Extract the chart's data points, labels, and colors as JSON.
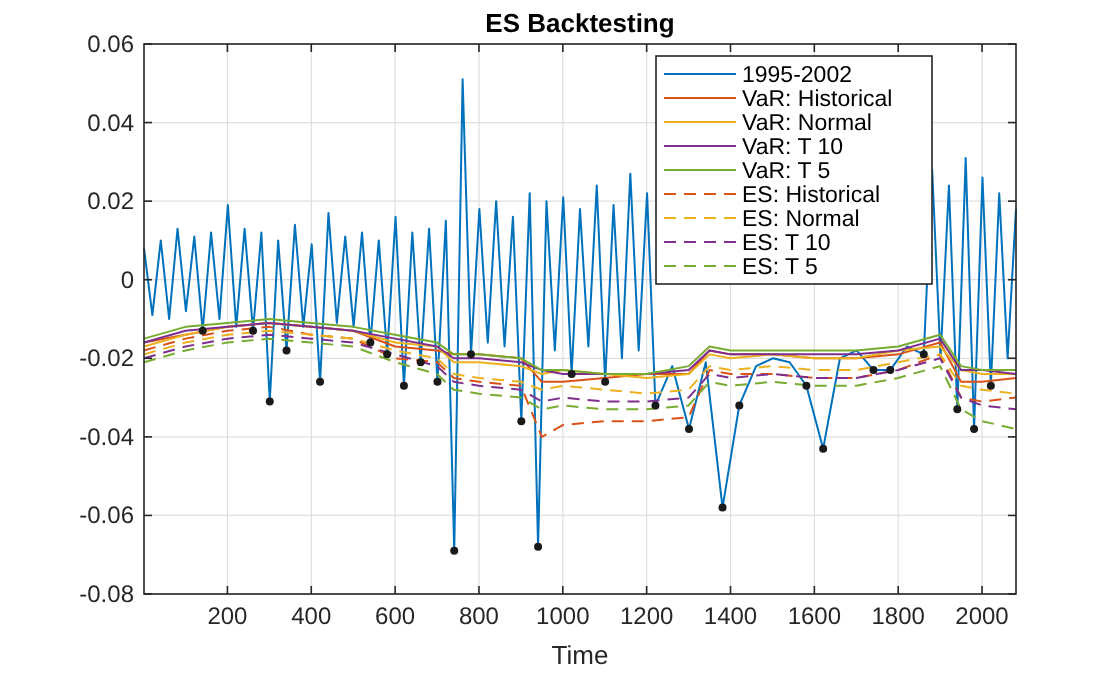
{
  "chart_data": {
    "type": "line",
    "title": "ES Backtesting",
    "xlabel": "Time",
    "xlim": [
      1,
      2081
    ],
    "ylim": [
      -0.08,
      0.06
    ],
    "xticks": [
      200,
      400,
      600,
      800,
      1000,
      1200,
      1400,
      1600,
      1800,
      2000
    ],
    "yticks": [
      -0.08,
      -0.06,
      -0.04,
      -0.02,
      0,
      0.02,
      0.04,
      0.06
    ],
    "grid": true,
    "legend": "top right",
    "marker": "none",
    "series": [
      {
        "name": "1995-2002",
        "color": "#0072bd",
        "x": [
          1,
          21,
          41,
          61,
          81,
          101,
          121,
          141,
          161,
          181,
          201,
          221,
          241,
          261,
          281,
          301,
          321,
          341,
          361,
          381,
          401,
          421,
          441,
          461,
          481,
          501,
          521,
          541,
          561,
          581,
          601,
          621,
          641,
          661,
          681,
          701,
          721,
          741,
          761,
          781,
          801,
          821,
          841,
          861,
          881,
          901,
          921,
          941,
          961,
          981,
          1001,
          1021,
          1041,
          1061,
          1081,
          1101,
          1121,
          1141,
          1161,
          1181,
          1201,
          1221,
          1261,
          1301,
          1341,
          1381,
          1421,
          1461,
          1501,
          1541,
          1581,
          1621,
          1661,
          1701,
          1741,
          1781,
          1821,
          1861,
          1881,
          1901,
          1921,
          1941,
          1961,
          1981,
          2001,
          2021,
          2041,
          2061,
          2081
        ],
        "values": [
          0.008,
          -0.009,
          0.01,
          -0.01,
          0.013,
          -0.008,
          0.011,
          -0.013,
          0.012,
          -0.01,
          0.019,
          -0.012,
          0.013,
          -0.013,
          0.012,
          -0.031,
          0.01,
          -0.018,
          0.014,
          -0.012,
          0.009,
          -0.026,
          0.017,
          -0.011,
          0.011,
          -0.012,
          0.012,
          -0.016,
          0.01,
          -0.019,
          0.016,
          -0.027,
          0.012,
          -0.021,
          0.013,
          -0.026,
          0.015,
          -0.069,
          0.051,
          -0.019,
          0.018,
          -0.016,
          0.02,
          -0.017,
          0.016,
          -0.036,
          0.022,
          -0.068,
          0.02,
          -0.018,
          0.021,
          -0.024,
          0.018,
          -0.017,
          0.024,
          -0.026,
          0.019,
          -0.02,
          0.027,
          -0.018,
          0.022,
          -0.032,
          -0.022,
          -0.038,
          -0.021,
          -0.058,
          -0.032,
          -0.022,
          -0.02,
          -0.021,
          -0.027,
          -0.043,
          -0.02,
          -0.018,
          -0.023,
          -0.023,
          -0.017,
          -0.019,
          0.028,
          -0.02,
          0.024,
          -0.033,
          0.031,
          -0.038,
          0.026,
          -0.027,
          0.022,
          -0.02,
          0.018
        ]
      },
      {
        "name": "VaR: Historical",
        "color": "#d95319",
        "x": [
          1,
          100,
          200,
          300,
          400,
          500,
          600,
          700,
          740,
          800,
          900,
          950,
          1000,
          1100,
          1200,
          1300,
          1350,
          1400,
          1500,
          1600,
          1700,
          1800,
          1900,
          1950,
          2000,
          2081
        ],
        "values": [
          -0.016,
          -0.014,
          -0.012,
          -0.011,
          -0.012,
          -0.013,
          -0.017,
          -0.018,
          -0.019,
          -0.019,
          -0.02,
          -0.026,
          -0.026,
          -0.025,
          -0.024,
          -0.024,
          -0.018,
          -0.019,
          -0.019,
          -0.02,
          -0.02,
          -0.019,
          -0.016,
          -0.026,
          -0.026,
          -0.025
        ]
      },
      {
        "name": "VaR: Normal",
        "color": "#edb120",
        "x": [
          1,
          100,
          200,
          300,
          400,
          500,
          600,
          700,
          740,
          800,
          900,
          950,
          1000,
          1100,
          1200,
          1300,
          1350,
          1400,
          1500,
          1600,
          1700,
          1800,
          1900,
          1950,
          2000,
          2081
        ],
        "values": [
          -0.017,
          -0.014,
          -0.012,
          -0.011,
          -0.012,
          -0.013,
          -0.016,
          -0.017,
          -0.021,
          -0.021,
          -0.022,
          -0.024,
          -0.023,
          -0.024,
          -0.025,
          -0.024,
          -0.019,
          -0.02,
          -0.019,
          -0.02,
          -0.02,
          -0.018,
          -0.017,
          -0.023,
          -0.024,
          -0.024
        ]
      },
      {
        "name": "VaR: T 10",
        "color": "#7e2f8e",
        "x": [
          1,
          100,
          200,
          300,
          400,
          500,
          600,
          700,
          740,
          800,
          900,
          950,
          1000,
          1100,
          1200,
          1300,
          1350,
          1400,
          1500,
          1600,
          1700,
          1800,
          1900,
          1950,
          2000,
          2081
        ],
        "values": [
          -0.016,
          -0.013,
          -0.012,
          -0.011,
          -0.012,
          -0.013,
          -0.015,
          -0.017,
          -0.02,
          -0.02,
          -0.021,
          -0.023,
          -0.024,
          -0.024,
          -0.024,
          -0.023,
          -0.018,
          -0.019,
          -0.019,
          -0.019,
          -0.019,
          -0.018,
          -0.015,
          -0.023,
          -0.023,
          -0.024
        ]
      },
      {
        "name": "VaR: T 5",
        "color": "#77ac30",
        "x": [
          1,
          100,
          200,
          300,
          400,
          500,
          600,
          700,
          740,
          800,
          900,
          950,
          1000,
          1100,
          1200,
          1300,
          1350,
          1400,
          1500,
          1600,
          1700,
          1800,
          1900,
          1950,
          2000,
          2081
        ],
        "values": [
          -0.015,
          -0.012,
          -0.011,
          -0.01,
          -0.011,
          -0.012,
          -0.014,
          -0.016,
          -0.019,
          -0.019,
          -0.02,
          -0.023,
          -0.023,
          -0.024,
          -0.024,
          -0.022,
          -0.017,
          -0.018,
          -0.018,
          -0.018,
          -0.018,
          -0.017,
          -0.014,
          -0.022,
          -0.023,
          -0.023
        ]
      },
      {
        "name": "ES: Historical",
        "color": "#d95319",
        "line_style": "dashed",
        "x": [
          1,
          100,
          200,
          300,
          400,
          500,
          600,
          700,
          740,
          800,
          900,
          950,
          1000,
          1100,
          1200,
          1300,
          1350,
          1400,
          1500,
          1600,
          1700,
          1800,
          1900,
          1950,
          2000,
          2081
        ],
        "values": [
          -0.018,
          -0.015,
          -0.013,
          -0.012,
          -0.014,
          -0.015,
          -0.02,
          -0.021,
          -0.025,
          -0.026,
          -0.027,
          -0.04,
          -0.037,
          -0.036,
          -0.036,
          -0.035,
          -0.023,
          -0.024,
          -0.024,
          -0.025,
          -0.025,
          -0.023,
          -0.019,
          -0.03,
          -0.031,
          -0.03
        ]
      },
      {
        "name": "ES: Normal",
        "color": "#edb120",
        "line_style": "dashed",
        "x": [
          1,
          100,
          200,
          300,
          400,
          500,
          600,
          700,
          740,
          800,
          900,
          950,
          1000,
          1100,
          1200,
          1300,
          1350,
          1400,
          1500,
          1600,
          1700,
          1800,
          1900,
          1950,
          2000,
          2081
        ],
        "values": [
          -0.019,
          -0.016,
          -0.014,
          -0.013,
          -0.014,
          -0.015,
          -0.018,
          -0.02,
          -0.024,
          -0.025,
          -0.026,
          -0.028,
          -0.027,
          -0.028,
          -0.029,
          -0.028,
          -0.022,
          -0.023,
          -0.022,
          -0.023,
          -0.023,
          -0.021,
          -0.019,
          -0.027,
          -0.028,
          -0.029
        ]
      },
      {
        "name": "ES: T 10",
        "color": "#7e2f8e",
        "line_style": "dashed",
        "x": [
          1,
          100,
          200,
          300,
          400,
          500,
          600,
          700,
          740,
          800,
          900,
          950,
          1000,
          1100,
          1200,
          1300,
          1350,
          1400,
          1500,
          1600,
          1700,
          1800,
          1900,
          1950,
          2000,
          2081
        ],
        "values": [
          -0.02,
          -0.017,
          -0.015,
          -0.014,
          -0.015,
          -0.016,
          -0.019,
          -0.022,
          -0.026,
          -0.027,
          -0.028,
          -0.031,
          -0.03,
          -0.031,
          -0.031,
          -0.03,
          -0.024,
          -0.025,
          -0.024,
          -0.025,
          -0.025,
          -0.023,
          -0.02,
          -0.03,
          -0.032,
          -0.033
        ]
      },
      {
        "name": "ES: T 5",
        "color": "#77ac30",
        "line_style": "dashed",
        "x": [
          1,
          100,
          200,
          300,
          400,
          500,
          600,
          700,
          740,
          800,
          900,
          950,
          1000,
          1100,
          1200,
          1300,
          1350,
          1400,
          1500,
          1600,
          1700,
          1800,
          1900,
          1950,
          2000,
          2081
        ],
        "values": [
          -0.021,
          -0.018,
          -0.016,
          -0.015,
          -0.016,
          -0.017,
          -0.021,
          -0.024,
          -0.028,
          -0.029,
          -0.03,
          -0.033,
          -0.032,
          -0.033,
          -0.033,
          -0.032,
          -0.026,
          -0.027,
          -0.026,
          -0.027,
          -0.027,
          -0.025,
          -0.022,
          -0.033,
          -0.036,
          -0.038
        ]
      },
      {
        "type": "scatter",
        "marker": "circle",
        "color": "#1a1a1a",
        "x": [
          141,
          261,
          301,
          341,
          421,
          541,
          581,
          621,
          661,
          701,
          741,
          781,
          901,
          941,
          1021,
          1101,
          1221,
          1301,
          1381,
          1421,
          1581,
          1621,
          1741,
          1781,
          1861,
          1941,
          1981,
          2021
        ],
        "values": [
          -0.013,
          -0.013,
          -0.031,
          -0.018,
          -0.026,
          -0.016,
          -0.019,
          -0.027,
          -0.021,
          -0.026,
          -0.069,
          -0.019,
          -0.036,
          -0.068,
          -0.024,
          -0.026,
          -0.032,
          -0.038,
          -0.058,
          -0.032,
          -0.027,
          -0.043,
          -0.023,
          -0.023,
          -0.019,
          -0.033,
          -0.038,
          -0.027
        ]
      }
    ]
  }
}
